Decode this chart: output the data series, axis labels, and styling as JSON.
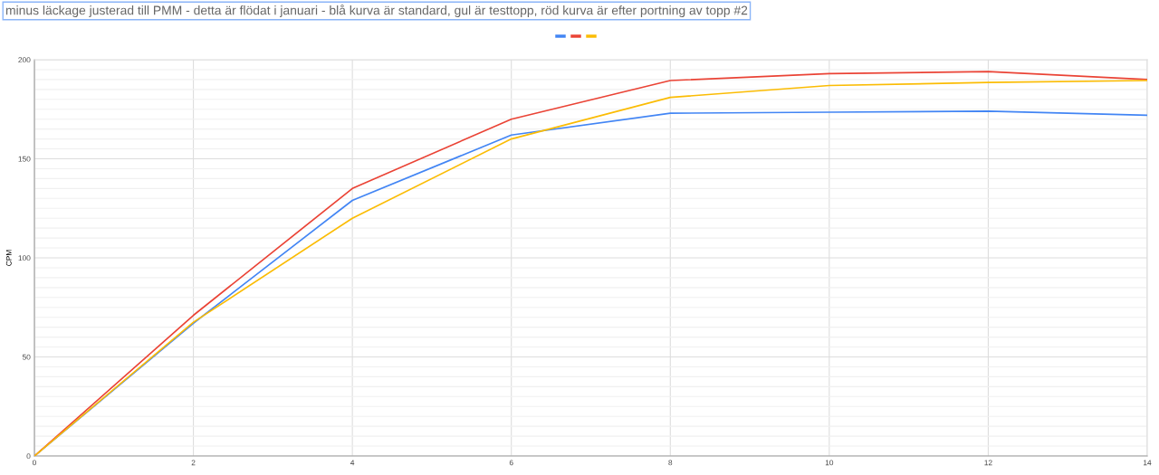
{
  "chart_data": {
    "type": "line",
    "title": "minus läckage justerad till PMM - detta är flödat i januari - blå kurva är standard, gul är testtopp, röd kurva är efter portning av topp #2",
    "ylabel": "CPM",
    "x": [
      0,
      2,
      4,
      6,
      8,
      10,
      12,
      14
    ],
    "series": [
      {
        "color": "#4285f4",
        "values": [
          0,
          67,
          129,
          162,
          173,
          173.5,
          174,
          172
        ]
      },
      {
        "color": "#ea4335",
        "values": [
          0,
          71,
          135,
          170,
          189.5,
          193,
          194,
          190
        ]
      },
      {
        "color": "#fbbc04",
        "values": [
          0,
          67.5,
          120,
          160,
          181,
          187,
          188.5,
          189.5
        ]
      }
    ],
    "xlim": [
      0,
      14
    ],
    "xticks": [
      0,
      2,
      4,
      6,
      8,
      10,
      12,
      14
    ],
    "ylim": [
      0,
      200
    ],
    "yticks": [
      0,
      50,
      100,
      150,
      200
    ],
    "grid": true,
    "marker": "none",
    "line_style": "solid"
  }
}
